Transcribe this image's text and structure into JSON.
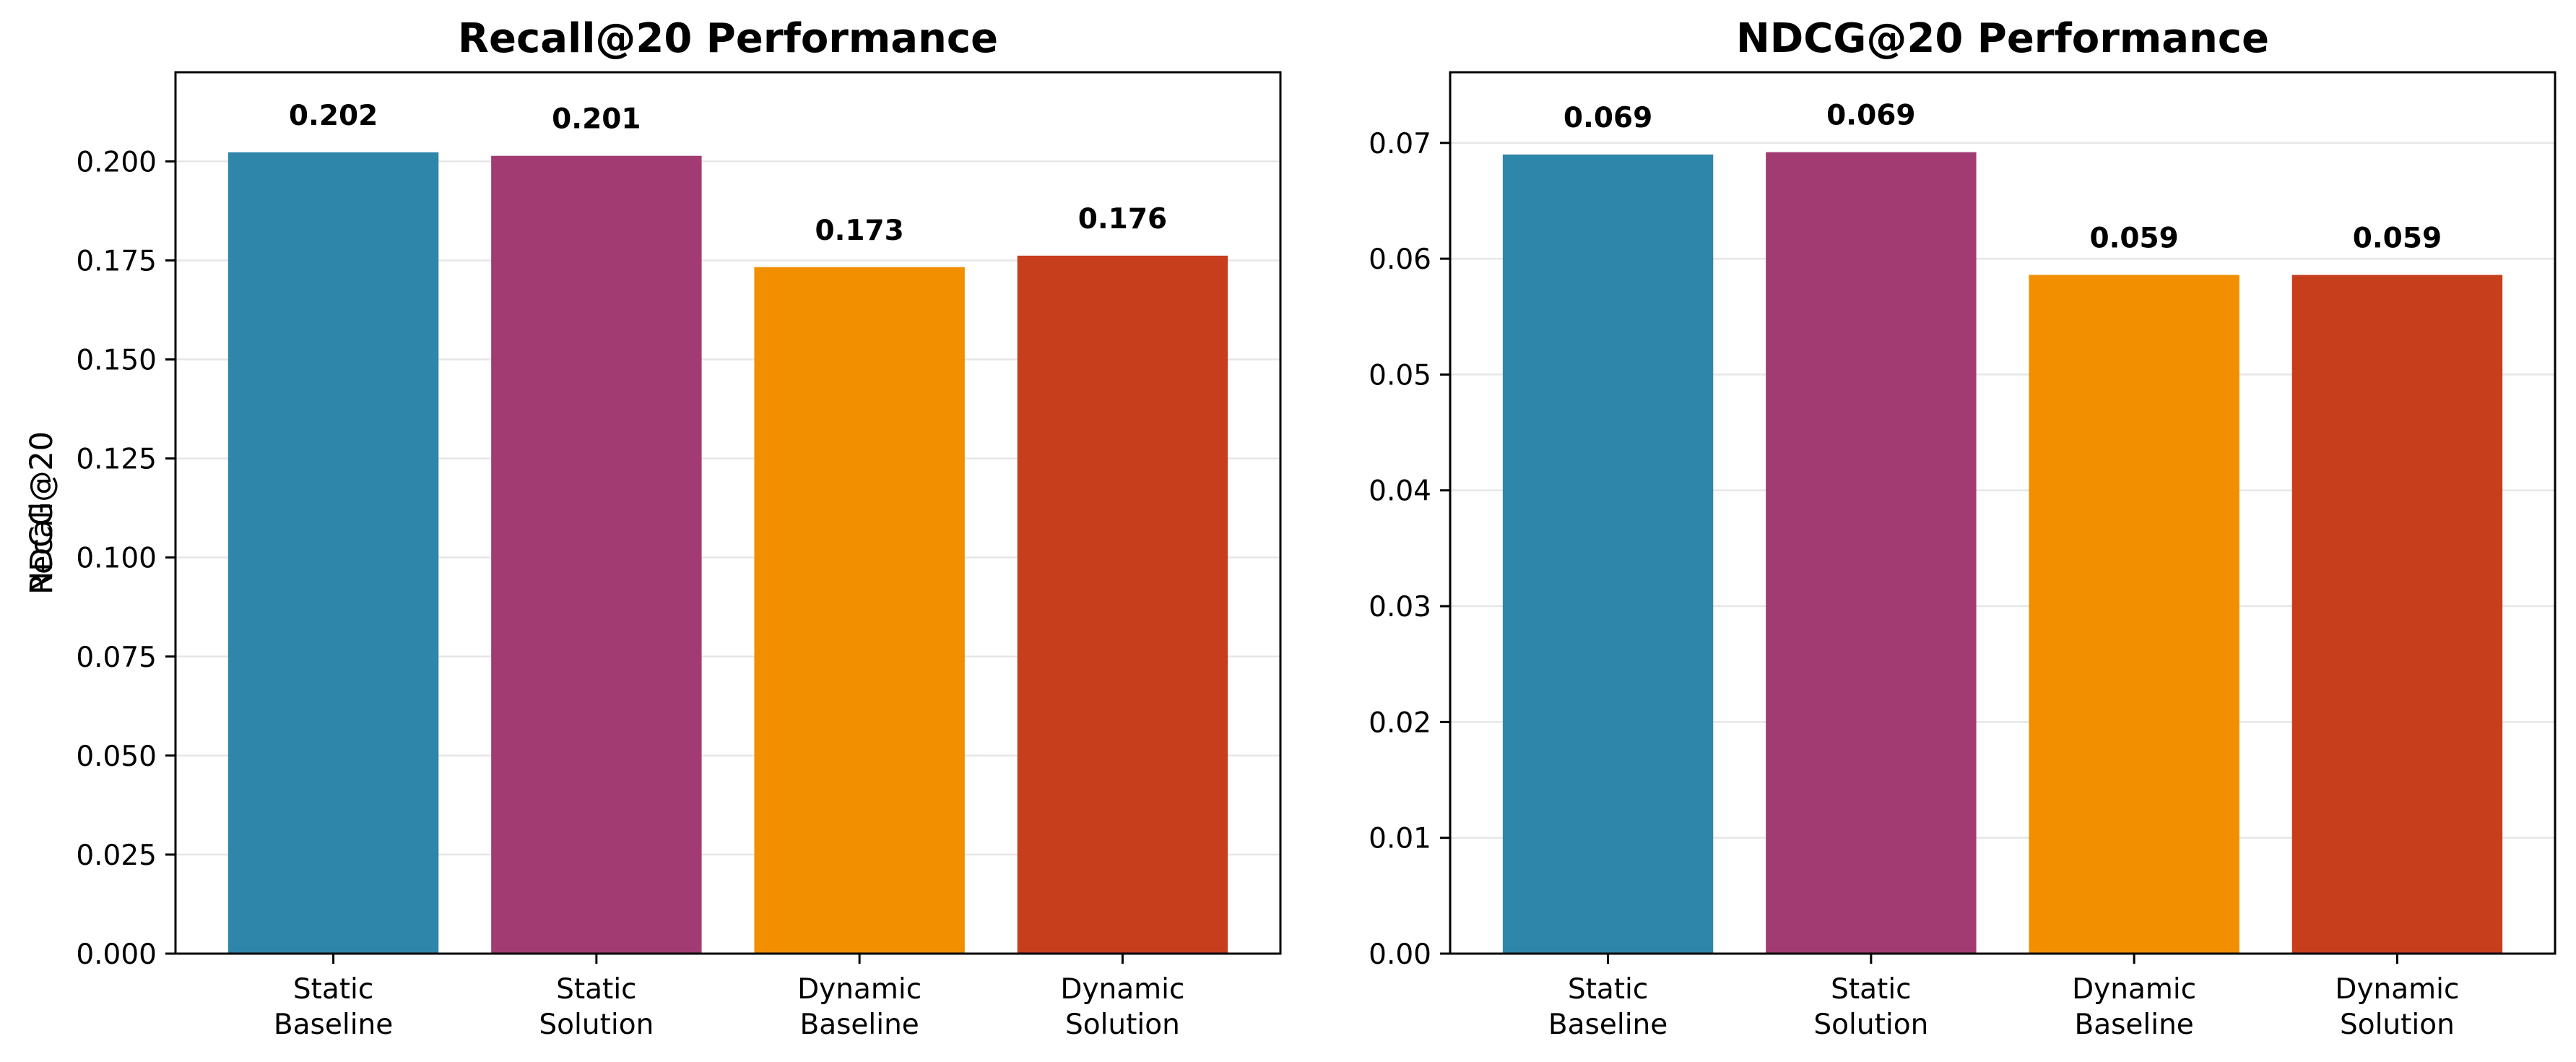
{
  "chart_data": [
    {
      "type": "bar",
      "title": "Recall@20 Performance",
      "xlabel": "",
      "ylabel": "Recall@20",
      "categories": [
        [
          "Static",
          "Baseline"
        ],
        [
          "Static",
          "Solution"
        ],
        [
          "Dynamic",
          "Baseline"
        ],
        [
          "Dynamic",
          "Solution"
        ]
      ],
      "values": [
        0.2023,
        0.2014,
        0.1733,
        0.1762
      ],
      "value_labels": [
        "0.202",
        "0.201",
        "0.173",
        "0.176"
      ],
      "colors": [
        "#2e86ab",
        "#a23b72",
        "#f18f01",
        "#c73e1d"
      ],
      "ylim": [
        0,
        0.2225
      ],
      "yticks": [
        0,
        0.025,
        0.05,
        0.075,
        0.1,
        0.125,
        0.15,
        0.175,
        0.2
      ],
      "ytick_labels": [
        "0.000",
        "0.025",
        "0.050",
        "0.075",
        "0.100",
        "0.125",
        "0.150",
        "0.175",
        "0.200"
      ],
      "grid": "y"
    },
    {
      "type": "bar",
      "title": "NDCG@20 Performance",
      "xlabel": "",
      "ylabel": "NDCG@20",
      "categories": [
        [
          "Static",
          "Baseline"
        ],
        [
          "Static",
          "Solution"
        ],
        [
          "Dynamic",
          "Baseline"
        ],
        [
          "Dynamic",
          "Solution"
        ]
      ],
      "values": [
        0.069,
        0.0692,
        0.0586,
        0.0586
      ],
      "value_labels": [
        "0.069",
        "0.069",
        "0.059",
        "0.059"
      ],
      "colors": [
        "#2e86ab",
        "#a23b72",
        "#f18f01",
        "#c73e1d"
      ],
      "ylim": [
        0,
        0.0761
      ],
      "yticks": [
        0,
        0.01,
        0.02,
        0.03,
        0.04,
        0.05,
        0.06,
        0.07
      ],
      "ytick_labels": [
        "0.00",
        "0.01",
        "0.02",
        "0.03",
        "0.04",
        "0.05",
        "0.06",
        "0.07"
      ],
      "grid": "y"
    }
  ]
}
